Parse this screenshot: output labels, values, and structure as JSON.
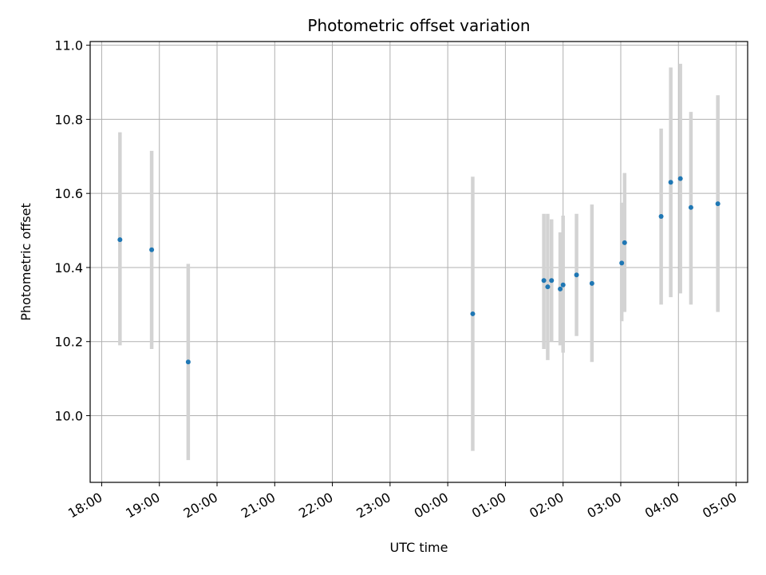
{
  "chart_data": {
    "type": "scatter",
    "title": "Photometric offset variation",
    "xlabel": "UTC time",
    "ylabel": "Photometric offset",
    "x_unit": "hours, UTC",
    "x_ticks": [
      "18:00",
      "19:00",
      "20:00",
      "21:00",
      "22:00",
      "23:00",
      "00:00",
      "01:00",
      "02:00",
      "03:00",
      "04:00",
      "05:00"
    ],
    "x_tick_hours": [
      0,
      1,
      2,
      3,
      4,
      5,
      6,
      7,
      8,
      9,
      10,
      11
    ],
    "xlim": [
      -0.2,
      11.2
    ],
    "y_ticks": [
      "10.0",
      "10.2",
      "10.4",
      "10.6",
      "10.8",
      "11.0"
    ],
    "y_tick_values": [
      10.0,
      10.2,
      10.4,
      10.6,
      10.8,
      11.0
    ],
    "ylim": [
      9.82,
      11.01
    ],
    "grid": true,
    "marker_color": "#1f77b4",
    "errorbar_color": "#d3d3d3",
    "points": [
      {
        "x": "18:19",
        "y": 10.475,
        "err_low": 10.19,
        "err_high": 10.765
      },
      {
        "x": "18:52",
        "y": 10.448,
        "err_low": 10.18,
        "err_high": 10.715
      },
      {
        "x": "19:30",
        "y": 10.145,
        "err_low": 9.88,
        "err_high": 10.41
      },
      {
        "x": "00:26",
        "y": 10.275,
        "err_low": 9.905,
        "err_high": 10.645
      },
      {
        "x": "01:40",
        "y": 10.365,
        "err_low": 10.18,
        "err_high": 10.545
      },
      {
        "x": "01:44",
        "y": 10.348,
        "err_low": 10.15,
        "err_high": 10.545
      },
      {
        "x": "01:48",
        "y": 10.365,
        "err_low": 10.2,
        "err_high": 10.53
      },
      {
        "x": "01:57",
        "y": 10.342,
        "err_low": 10.19,
        "err_high": 10.495
      },
      {
        "x": "02:00",
        "y": 10.353,
        "err_low": 10.17,
        "err_high": 10.54
      },
      {
        "x": "02:14",
        "y": 10.38,
        "err_low": 10.215,
        "err_high": 10.545
      },
      {
        "x": "02:30",
        "y": 10.357,
        "err_low": 10.145,
        "err_high": 10.57
      },
      {
        "x": "03:01",
        "y": 10.412,
        "err_low": 10.255,
        "err_high": 10.575
      },
      {
        "x": "03:04",
        "y": 10.467,
        "err_low": 10.28,
        "err_high": 10.655
      },
      {
        "x": "03:42",
        "y": 10.538,
        "err_low": 10.3,
        "err_high": 10.775
      },
      {
        "x": "03:52",
        "y": 10.63,
        "err_low": 10.32,
        "err_high": 10.94
      },
      {
        "x": "04:02",
        "y": 10.64,
        "err_low": 10.33,
        "err_high": 10.95
      },
      {
        "x": "04:13",
        "y": 10.562,
        "err_low": 10.3,
        "err_high": 10.82
      },
      {
        "x": "04:41",
        "y": 10.572,
        "err_low": 10.28,
        "err_high": 10.865
      }
    ]
  }
}
